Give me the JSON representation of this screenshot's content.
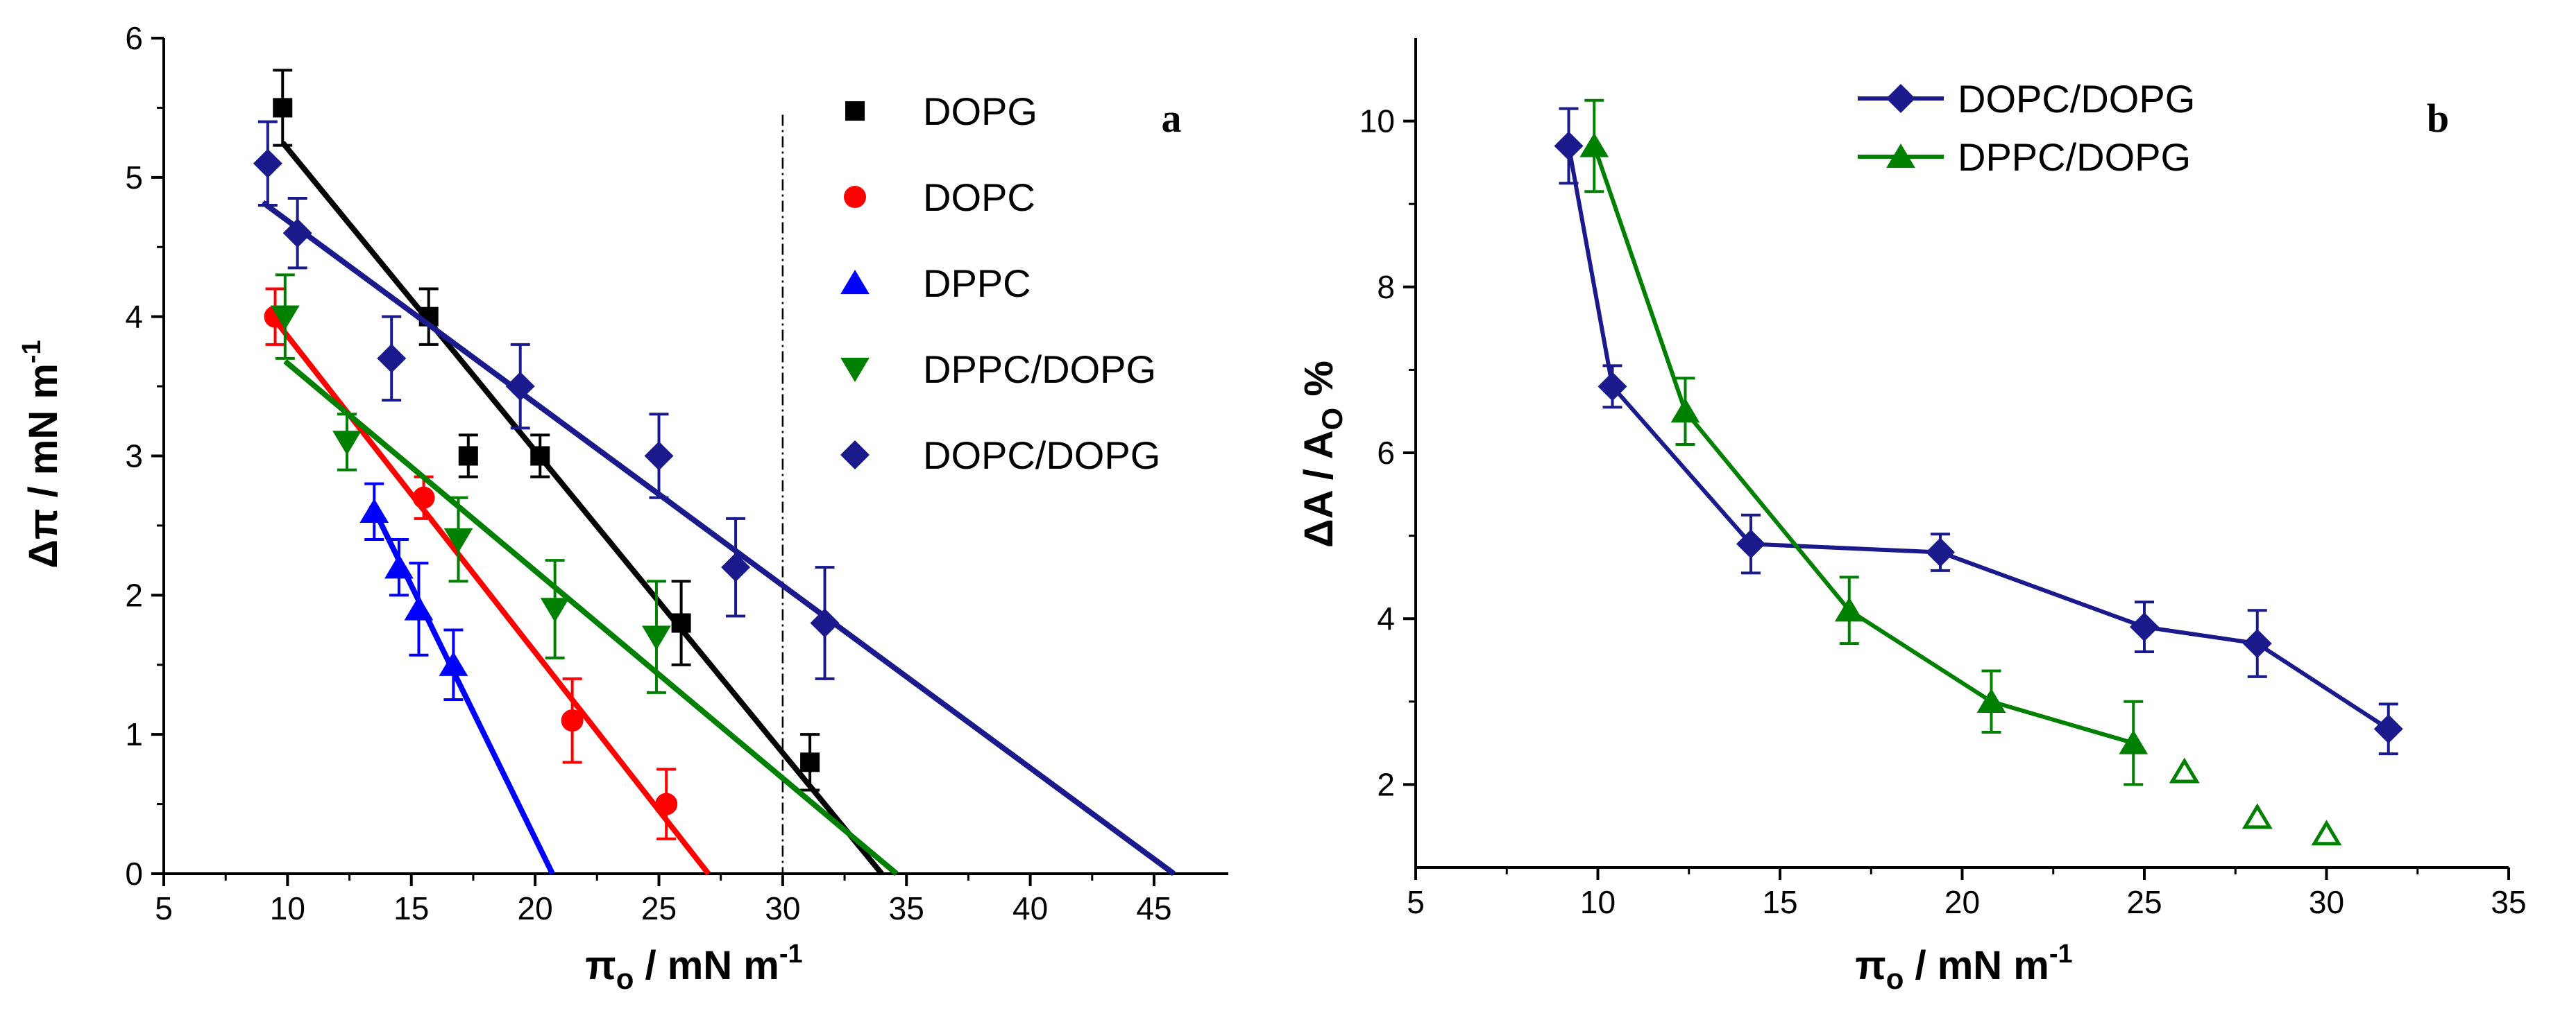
{
  "chart_data": [
    {
      "type": "scatter",
      "panel_label": "a",
      "xlabel": {
        "main": "π",
        "sub": "o",
        "rest": " / mN m",
        "sup": "-1"
      },
      "ylabel": {
        "main": "Δπ / mN m",
        "sup": "-1"
      },
      "xlim": [
        5,
        48
      ],
      "ylim": [
        0,
        6
      ],
      "xticks": [
        5,
        10,
        15,
        20,
        25,
        30,
        35,
        40,
        45
      ],
      "yticks": [
        0,
        1,
        2,
        3,
        4,
        5,
        6
      ],
      "reference_line_x": 30,
      "legend_position": "top-right",
      "series": [
        {
          "name": "DOPG",
          "marker": "square",
          "color": "#000000",
          "points": [
            {
              "x": 9.8,
              "y": 5.5,
              "err": 0.27
            },
            {
              "x": 15.7,
              "y": 4.0,
              "err": 0.2
            },
            {
              "x": 17.3,
              "y": 3.0,
              "err": 0.15
            },
            {
              "x": 20.2,
              "y": 3.0,
              "err": 0.15
            },
            {
              "x": 25.9,
              "y": 1.8,
              "err": 0.3
            },
            {
              "x": 31.1,
              "y": 0.8,
              "err": 0.2
            }
          ],
          "fit": {
            "x0": 9.8,
            "y0": 5.25,
            "x1": 34.0,
            "y1": 0
          }
        },
        {
          "name": "DOPC",
          "marker": "circle",
          "color": "#ff0000",
          "points": [
            {
              "x": 9.5,
              "y": 4.0,
              "err": 0.2
            },
            {
              "x": 15.5,
              "y": 2.7,
              "err": 0.15
            },
            {
              "x": 21.5,
              "y": 1.1,
              "err": 0.3
            },
            {
              "x": 25.3,
              "y": 0.5,
              "err": 0.25
            }
          ],
          "fit": {
            "x0": 9.3,
            "y0": 4.02,
            "x1": 27.0,
            "y1": 0
          }
        },
        {
          "name": "DPPC",
          "marker": "triangle-up",
          "color": "#0000ff",
          "points": [
            {
              "x": 13.5,
              "y": 2.6,
              "err": 0.2
            },
            {
              "x": 14.5,
              "y": 2.2,
              "err": 0.2
            },
            {
              "x": 15.3,
              "y": 1.9,
              "err": 0.33
            },
            {
              "x": 16.7,
              "y": 1.5,
              "err": 0.25
            }
          ],
          "fit": {
            "x0": 13.4,
            "y0": 2.65,
            "x1": 20.7,
            "y1": 0
          }
        },
        {
          "name": "DPPC/DOPG",
          "marker": "triangle-down",
          "color": "#008000",
          "points": [
            {
              "x": 9.9,
              "y": 4.0,
              "err": 0.3
            },
            {
              "x": 12.4,
              "y": 3.1,
              "err": 0.2
            },
            {
              "x": 16.9,
              "y": 2.4,
              "err": 0.3
            },
            {
              "x": 20.8,
              "y": 1.9,
              "err": 0.35
            },
            {
              "x": 24.9,
              "y": 1.7,
              "err": 0.4
            }
          ],
          "fit": {
            "x0": 9.9,
            "y0": 3.68,
            "x1": 34.6,
            "y1": 0
          }
        },
        {
          "name": "DOPC/DOPG",
          "marker": "diamond",
          "color": "#1a1a8c",
          "points": [
            {
              "x": 9.2,
              "y": 5.1,
              "err": 0.3
            },
            {
              "x": 10.4,
              "y": 4.6,
              "err": 0.25
            },
            {
              "x": 14.2,
              "y": 3.7,
              "err": 0.3
            },
            {
              "x": 19.4,
              "y": 3.5,
              "err": 0.3
            },
            {
              "x": 25.0,
              "y": 3.0,
              "err": 0.3
            },
            {
              "x": 28.1,
              "y": 2.2,
              "err": 0.35
            },
            {
              "x": 31.7,
              "y": 1.8,
              "err": 0.4
            }
          ],
          "fit": {
            "x0": 9.0,
            "y0": 4.82,
            "x1": 45.8,
            "y1": 0
          }
        }
      ]
    },
    {
      "type": "line",
      "panel_label": "b",
      "xlabel": {
        "main": "π",
        "sub": "o",
        "rest": " / mN m",
        "sup": "-1"
      },
      "ylabel": {
        "main": "ΔA / A",
        "sub": "O",
        "rest": " %"
      },
      "xlim": [
        5,
        35
      ],
      "ylim": [
        1,
        11
      ],
      "xticks": [
        5,
        10,
        15,
        20,
        25,
        30,
        35
      ],
      "yticks": [
        2,
        4,
        6,
        8,
        10
      ],
      "legend_position": "top-center",
      "series": [
        {
          "name": "DOPC/DOPG",
          "marker": "diamond",
          "color": "#1a1a8c",
          "points": [
            {
              "x": 9.2,
              "y": 9.7,
              "err": 0.45
            },
            {
              "x": 10.4,
              "y": 6.8,
              "err": 0.25
            },
            {
              "x": 14.2,
              "y": 4.9,
              "err": 0.35
            },
            {
              "x": 19.4,
              "y": 4.8,
              "err": 0.22
            },
            {
              "x": 25.0,
              "y": 3.9,
              "err": 0.3
            },
            {
              "x": 28.1,
              "y": 3.7,
              "err": 0.4
            },
            {
              "x": 31.7,
              "y": 2.67,
              "err": 0.3
            }
          ]
        },
        {
          "name": "DPPC/DOPG",
          "marker": "triangle-up",
          "color": "#008000",
          "points": [
            {
              "x": 9.9,
              "y": 9.7,
              "err": 0.55
            },
            {
              "x": 12.4,
              "y": 6.5,
              "err": 0.4
            },
            {
              "x": 16.9,
              "y": 4.1,
              "err": 0.4
            },
            {
              "x": 20.8,
              "y": 3.0,
              "err": 0.37
            },
            {
              "x": 24.7,
              "y": 2.5,
              "err": 0.5
            }
          ],
          "open_points": [
            {
              "x": 26.1,
              "y": 2.15
            },
            {
              "x": 28.1,
              "y": 1.6
            },
            {
              "x": 30.0,
              "y": 1.4
            }
          ]
        }
      ]
    }
  ]
}
